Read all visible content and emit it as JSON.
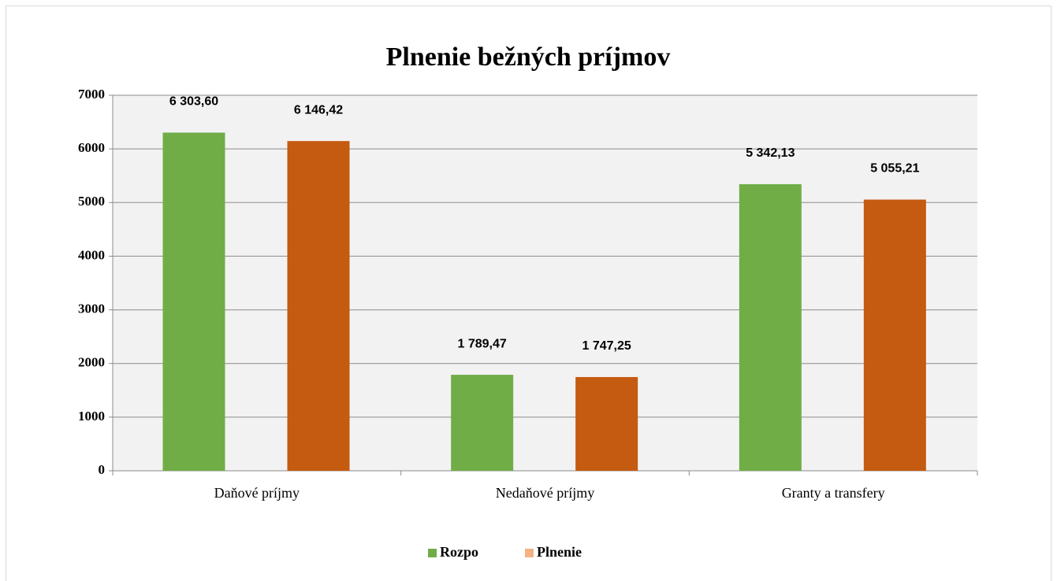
{
  "chart_data": {
    "type": "bar",
    "title": "Plnenie bežných príjmov",
    "categories": [
      "Daňové príjmy",
      "Nedaňové príjmy",
      "Granty a transfery"
    ],
    "series": [
      {
        "name": "Rozpo",
        "color": "#70ad47",
        "legend_color": "#70ad47",
        "values": [
          6303.6,
          1789.47,
          5342.13
        ],
        "value_labels": [
          "6 303,60",
          "1 789,47",
          "5 342,13"
        ]
      },
      {
        "name": "Plnenie",
        "color": "#c55a11",
        "legend_color": "#f4b183",
        "values": [
          6146.42,
          1747.25,
          5055.21
        ],
        "value_labels": [
          "6 146,42",
          "1 747,25",
          "5 055,21"
        ]
      }
    ],
    "ylim": [
      0,
      7000
    ],
    "yticks": [
      0,
      1000,
      2000,
      3000,
      4000,
      5000,
      6000,
      7000
    ],
    "grid": true,
    "legend": "bottom"
  }
}
